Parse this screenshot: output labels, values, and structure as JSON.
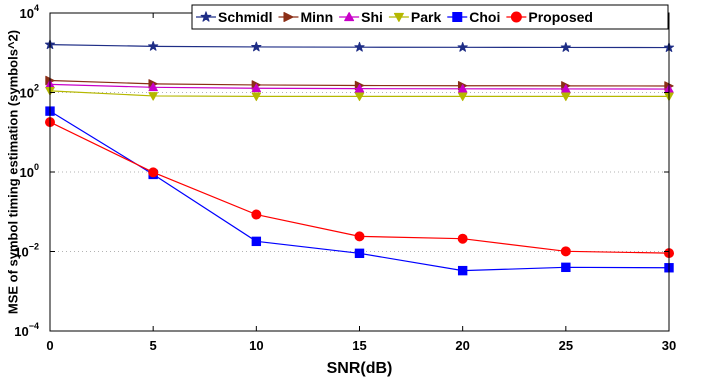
{
  "chart_data": {
    "type": "line",
    "xlabel": "SNR(dB)",
    "ylabel": "MSE of symbol timing estimation (symbols^2)",
    "x": [
      0,
      5,
      10,
      15,
      20,
      25,
      30
    ],
    "xlim": [
      0,
      30
    ],
    "ylim": [
      0.0001,
      10000
    ],
    "yscale": "log",
    "x_ticks": [
      "0",
      "5",
      "10",
      "15",
      "20",
      "25",
      "30"
    ],
    "y_ticks": [
      {
        "value": 0.0001,
        "base": "10",
        "exp": "−4"
      },
      {
        "value": 0.01,
        "base": "10",
        "exp": "−2"
      },
      {
        "value": 1,
        "base": "10",
        "exp": "0"
      },
      {
        "value": 100,
        "base": "10",
        "exp": "2"
      },
      {
        "value": 10000,
        "base": "10",
        "exp": "4"
      }
    ],
    "grid": "dotted",
    "legend_position": "top",
    "series": [
      {
        "name": "Schmidl",
        "color": "#1f2e86",
        "marker": "star",
        "values": [
          1600,
          1450,
          1400,
          1380,
          1370,
          1360,
          1350
        ]
      },
      {
        "name": "Minn",
        "color": "#8b2e16",
        "marker": "triangle-right",
        "values": [
          200,
          165,
          155,
          150,
          148,
          147,
          146
        ]
      },
      {
        "name": "Shi",
        "color": "#c800c8",
        "marker": "triangle-up",
        "values": [
          160,
          135,
          128,
          125,
          124,
          123,
          122
        ]
      },
      {
        "name": "Park",
        "color": "#b5b800",
        "marker": "triangle-down",
        "values": [
          110,
          82,
          80,
          80,
          80,
          80,
          80
        ]
      },
      {
        "name": "Choi",
        "color": "#0000ff",
        "marker": "square",
        "values": [
          34,
          0.87,
          0.018,
          0.009,
          0.0033,
          0.004,
          0.0039
        ]
      },
      {
        "name": "Proposed",
        "color": "#ff0000",
        "marker": "circle",
        "values": [
          18,
          0.98,
          0.085,
          0.024,
          0.021,
          0.0101,
          0.0091
        ]
      }
    ]
  }
}
